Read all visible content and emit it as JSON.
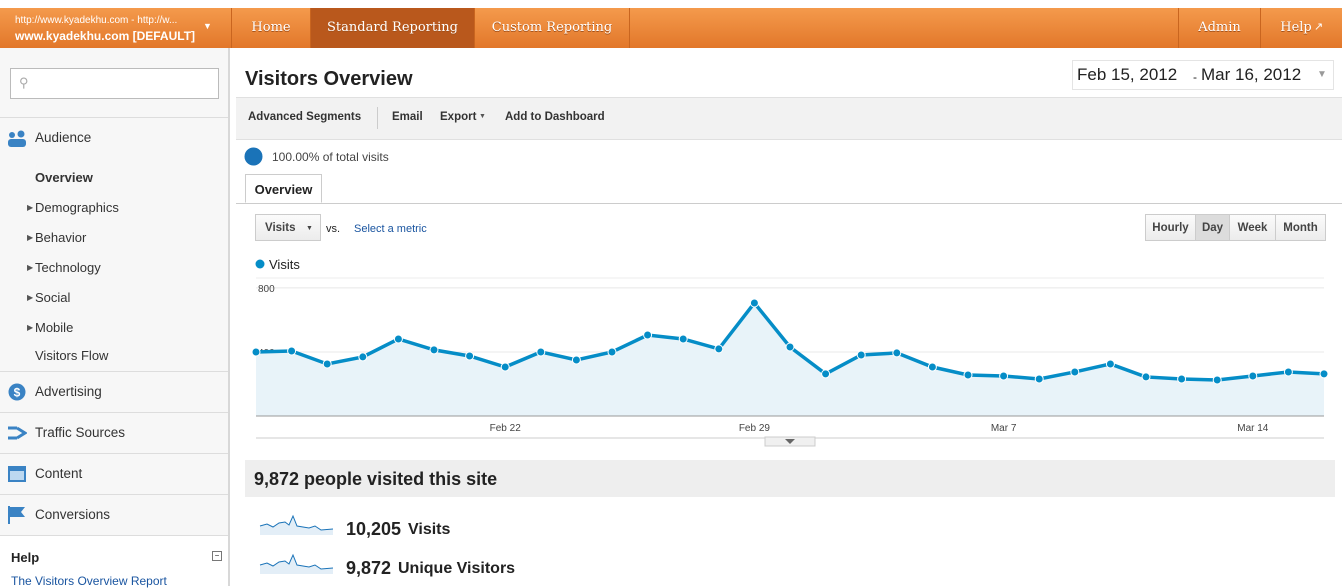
{
  "header": {
    "account_url": "http://www.kyadekhu.com - http://w...",
    "account_name": "www.kyadekhu.com [DEFAULT]",
    "nav": [
      "Home",
      "Standard Reporting",
      "Custom Reporting"
    ],
    "right_nav": [
      "Admin",
      "Help"
    ]
  },
  "sidebar": {
    "sections": [
      "Audience",
      "Advertising",
      "Traffic Sources",
      "Content",
      "Conversions"
    ],
    "audience_items": [
      "Overview",
      "Demographics",
      "Behavior",
      "Technology",
      "Social",
      "Mobile",
      "Visitors Flow"
    ],
    "help_title": "Help",
    "help_link": "The Visitors Overview Report"
  },
  "report": {
    "title": "Visitors Overview",
    "date_start": "Feb 15, 2012",
    "date_sep": "-",
    "date_end": "Mar 16, 2012",
    "toolbar": [
      "Advanced Segments",
      "Email",
      "Export",
      "Add to Dashboard"
    ],
    "segment": "100.00% of total visits",
    "tab": "Overview",
    "metric": "Visits",
    "vs": "vs.",
    "select_metric": "Select a metric",
    "granularity": [
      "Hourly",
      "Day",
      "Week",
      "Month"
    ]
  },
  "chart_data": {
    "type": "line",
    "categories": [
      null,
      null,
      null,
      null,
      null,
      null,
      null,
      "Feb 22",
      null,
      null,
      null,
      null,
      null,
      null,
      "Feb 29",
      null,
      null,
      null,
      null,
      null,
      null,
      "Mar 7",
      null,
      null,
      null,
      null,
      null,
      null,
      "Mar 14",
      null,
      null
    ],
    "series": [
      {
        "name": "Visits",
        "color": "#058dc7",
        "values": [
          400,
          406,
          325,
          369,
          481,
          413,
          375,
          306,
          400,
          350,
          400,
          506,
          481,
          419,
          706,
          431,
          263,
          381,
          394,
          306,
          256,
          250,
          231,
          275,
          325,
          244,
          231,
          225,
          250,
          275,
          263
        ]
      }
    ],
    "ylim": [
      0,
      862
    ],
    "yticks": [
      400,
      800
    ],
    "grid": true
  },
  "summary": {
    "headline": "9,872 people visited this site",
    "metrics": [
      {
        "value": "10,205",
        "label": "Visits"
      },
      {
        "value": "9,872",
        "label": "Unique Visitors"
      }
    ]
  }
}
